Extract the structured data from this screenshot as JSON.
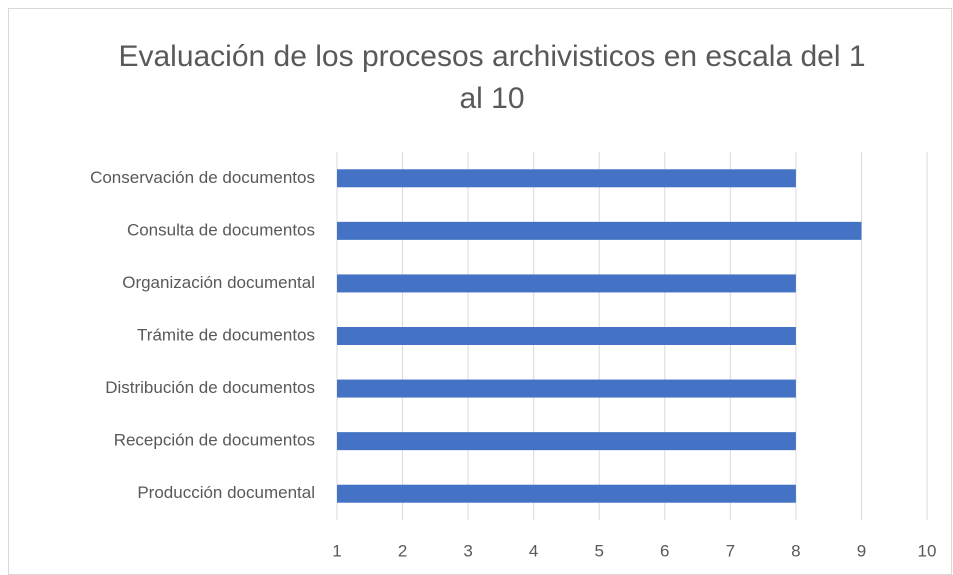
{
  "chart_data": {
    "type": "barh",
    "title": "Evaluación de los procesos archivisticos en escala del 1 al 10",
    "categories": [
      "Conservación de documentos",
      "Consulta de documentos",
      "Organización documental",
      "Trámite de documentos",
      "Distribución de documentos",
      "Recepción de documentos",
      "Producción documental"
    ],
    "values": [
      8,
      9,
      8,
      8,
      8,
      8,
      8
    ],
    "color": "#4472c4",
    "xlim": [
      1,
      10
    ],
    "xticks": [
      1,
      2,
      3,
      4,
      5,
      6,
      7,
      8,
      9,
      10
    ],
    "grid": true
  }
}
